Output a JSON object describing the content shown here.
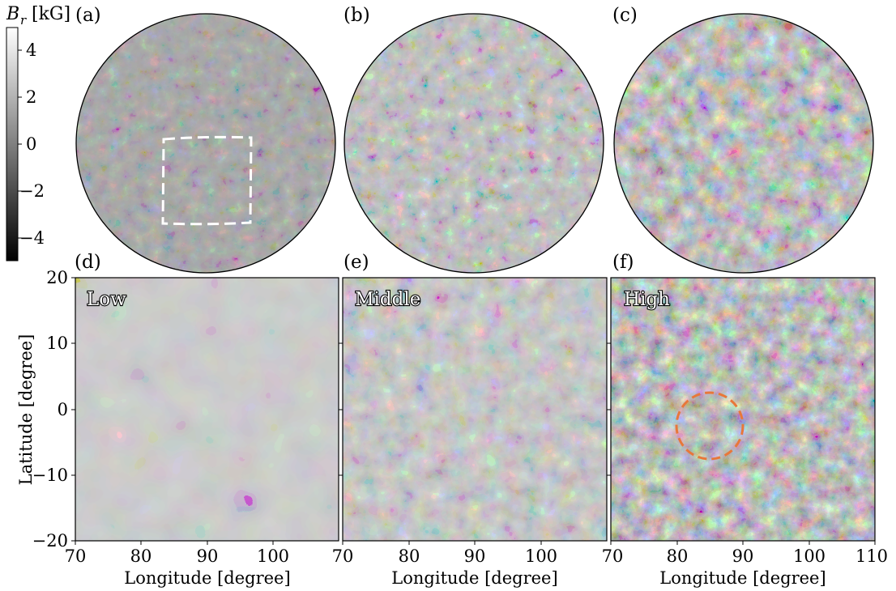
{
  "figure": {
    "colorbar": {
      "label_main": "B",
      "label_sub": "r",
      "label_unit": "[kG]",
      "ticks": [
        "4",
        "2",
        "0",
        "−2",
        "−4"
      ],
      "range": [
        -5,
        5
      ],
      "colormap": "grayscale"
    },
    "disks": [
      {
        "label": "(a)",
        "box_color": "#ffffff"
      },
      {
        "label": "(b)"
      },
      {
        "label": "(c)"
      }
    ],
    "maps": [
      {
        "label": "(d)",
        "region": "Low",
        "smoothness": "low"
      },
      {
        "label": "(e)",
        "region": "Middle",
        "smoothness": "medium"
      },
      {
        "label": "(f)",
        "region": "High",
        "smoothness": "high",
        "circle_color": "#e8773a"
      }
    ],
    "x_axis": {
      "label": "Longitude [degree]",
      "range": [
        70,
        110
      ],
      "ticks_panel_d": [
        "70",
        "80",
        "90",
        "100"
      ],
      "ticks_panel_e": [
        "70",
        "80",
        "90",
        "100"
      ],
      "ticks_panel_f": [
        "70",
        "80",
        "90",
        "100",
        "110"
      ]
    },
    "y_axis": {
      "label": "Latitude [degree]",
      "range": [
        -20,
        20
      ],
      "ticks": [
        "20",
        "10",
        "0",
        "−10",
        "−20"
      ]
    }
  }
}
